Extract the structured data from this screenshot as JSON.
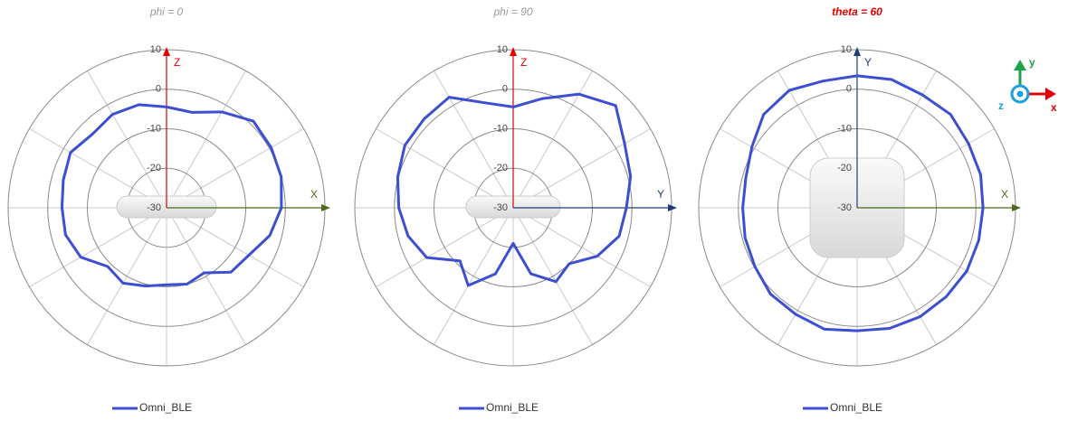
{
  "chart_data": [
    {
      "type": "polar",
      "title": "phi = 0",
      "title_color": "#9a9a9a",
      "rlim": [
        -30,
        10
      ],
      "rticks": [
        10,
        0,
        -10,
        -20,
        -30
      ],
      "axes": [
        {
          "label": "Z",
          "color": "#e00000",
          "dir": "up"
        },
        {
          "label": "X",
          "color": "#4a6a1a",
          "dir": "right"
        }
      ],
      "theta": [
        0,
        15,
        30,
        45,
        60,
        75,
        90,
        105,
        120,
        135,
        150,
        165,
        180,
        195,
        210,
        225,
        240,
        255,
        270,
        285,
        300,
        315,
        330,
        345
      ],
      "series": [
        {
          "name": "Omni_BLE",
          "color": "#3b4fd0",
          "values": [
            -4.5,
            -5,
            -2,
            1,
            0.5,
            0,
            -1,
            -3,
            -6,
            -7,
            -11,
            -10,
            -10.5,
            -9.5,
            -8,
            -9,
            -5,
            -3.6,
            -3.6,
            -3,
            -2,
            -3.6,
            -2.7,
            -3
          ]
        }
      ]
    },
    {
      "type": "polar",
      "title": "phi = 90",
      "title_color": "#9a9a9a",
      "rlim": [
        -30,
        10
      ],
      "rticks": [
        10,
        0,
        -10,
        -20,
        -30
      ],
      "axes": [
        {
          "label": "Z",
          "color": "#e00000",
          "dir": "up"
        },
        {
          "label": "Y",
          "color": "#1f3c7a",
          "dir": "right"
        }
      ],
      "theta": [
        0,
        15,
        30,
        45,
        60,
        75,
        90,
        105,
        120,
        135,
        150,
        165,
        180,
        195,
        210,
        225,
        240,
        255,
        270,
        285,
        300,
        315,
        330,
        345
      ],
      "series": [
        {
          "name": "Omni_BLE",
          "color": "#3b4fd0",
          "values": [
            -4.5,
            -1.4,
            3.2,
            6.6,
            2.5,
            0.7,
            -1.4,
            -2.3,
            -5.5,
            -10,
            -8.4,
            -12.7,
            -21,
            -12.7,
            -7.3,
            -11,
            -4.8,
            -2.5,
            -1.1,
            0.2,
            1.6,
            1.8,
            2.3,
            -2.5
          ]
        }
      ]
    },
    {
      "type": "polar",
      "title": "theta = 60",
      "title_color": "#e00000",
      "rlim": [
        -30,
        10
      ],
      "rticks": [
        10,
        0,
        -10,
        -20,
        -30
      ],
      "axes": [
        {
          "label": "Y",
          "color": "#1f3c7a",
          "dir": "up"
        },
        {
          "label": "X",
          "color": "#4a6a1a",
          "dir": "right"
        }
      ],
      "triad_labels": [
        "x",
        "y",
        "z"
      ],
      "theta": [
        0,
        15,
        30,
        45,
        60,
        75,
        90,
        105,
        120,
        135,
        150,
        165,
        180,
        195,
        210,
        225,
        240,
        255,
        270,
        285,
        300,
        315,
        330,
        345
      ],
      "series": [
        {
          "name": "Omni_BLE",
          "color": "#3b4fd0",
          "values": [
            3.4,
            3.6,
            3,
            3.4,
            2.5,
            2.3,
            1.8,
            1.8,
            2,
            1.8,
            1.8,
            1.6,
            1.1,
            1.8,
            1.1,
            0.9,
            -0.2,
            -0.7,
            -1.1,
            -0.9,
            0.7,
            3.4,
            4.3,
            3.2
          ]
        }
      ]
    }
  ]
}
